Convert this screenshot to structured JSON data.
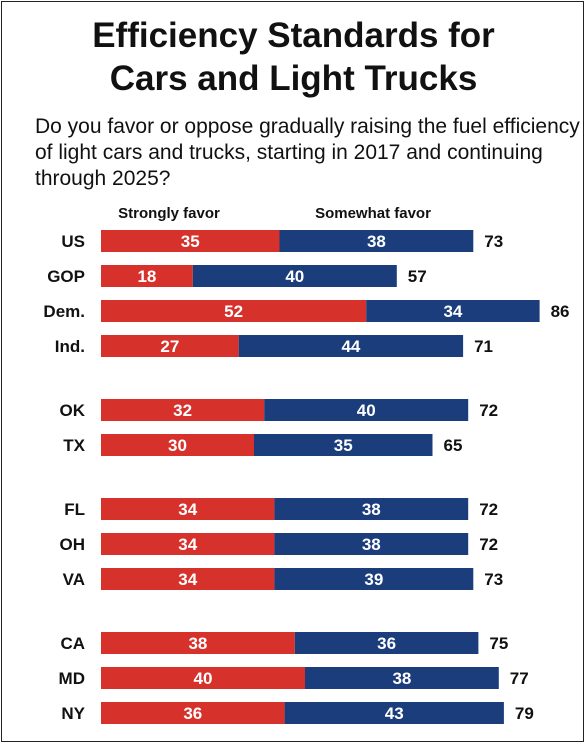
{
  "title": {
    "line1": "Efficiency Standards for",
    "line2": "Cars and Light Trucks"
  },
  "question": "Do you favor or oppose gradually raising the fuel efficiency of light cars and trucks, starting in 2017 and continuing through 2025?",
  "colors": {
    "strongly": "#d7312c",
    "somewhat": "#1b3d7c",
    "text": "#111111"
  },
  "chart_data": {
    "type": "bar",
    "orientation": "horizontal",
    "stacked": true,
    "categories": [
      "US",
      "GOP",
      "Dem.",
      "Ind.",
      "OK",
      "TX",
      "FL",
      "OH",
      "VA",
      "CA",
      "MD",
      "NY"
    ],
    "groups": [
      [
        "US",
        "GOP",
        "Dem.",
        "Ind."
      ],
      [
        "OK",
        "TX"
      ],
      [
        "FL",
        "OH",
        "VA"
      ],
      [
        "CA",
        "MD",
        "NY"
      ]
    ],
    "series": [
      {
        "name": "Strongly favor",
        "values": [
          35,
          18,
          52,
          27,
          32,
          30,
          34,
          34,
          34,
          38,
          40,
          36
        ]
      },
      {
        "name": "Somewhat favor",
        "values": [
          38,
          40,
          34,
          44,
          40,
          35,
          38,
          38,
          39,
          36,
          38,
          43
        ]
      }
    ],
    "totals": [
      73,
      57,
      86,
      71,
      72,
      65,
      72,
      72,
      73,
      75,
      77,
      79
    ],
    "legend_position": "top",
    "grid": false
  }
}
